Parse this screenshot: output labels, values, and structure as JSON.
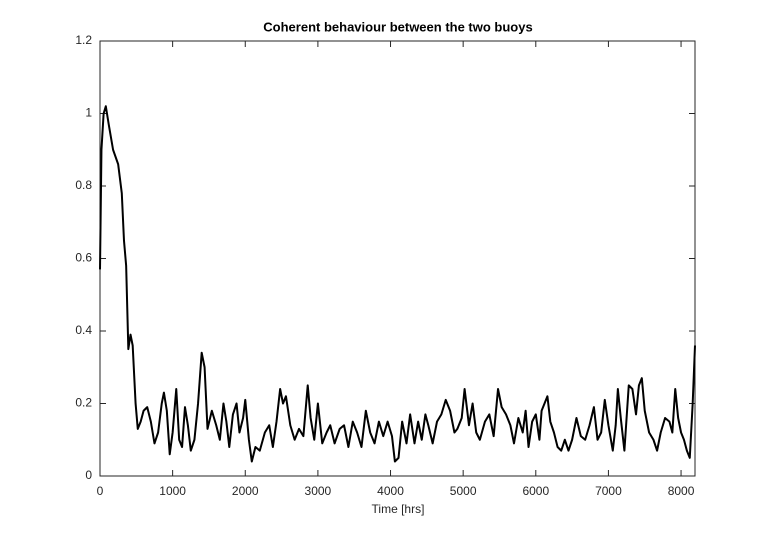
{
  "chart_data": {
    "type": "line",
    "title": "Coherent behaviour between the two buoys",
    "x_label": "Time [hrs]",
    "color": "#000000",
    "x": [
      0,
      20,
      50,
      80,
      120,
      180,
      250,
      300,
      330,
      360,
      390,
      420,
      450,
      490,
      520,
      560,
      600,
      650,
      700,
      750,
      800,
      850,
      880,
      920,
      960,
      1000,
      1050,
      1090,
      1130,
      1170,
      1210,
      1250,
      1300,
      1350,
      1400,
      1440,
      1480,
      1540,
      1600,
      1650,
      1700,
      1740,
      1780,
      1830,
      1880,
      1920,
      1970,
      2000,
      2050,
      2090,
      2140,
      2200,
      2270,
      2330,
      2380,
      2430,
      2480,
      2520,
      2560,
      2620,
      2680,
      2740,
      2800,
      2860,
      2900,
      2950,
      3000,
      3060,
      3120,
      3170,
      3230,
      3300,
      3360,
      3420,
      3480,
      3540,
      3600,
      3660,
      3720,
      3780,
      3840,
      3900,
      3960,
      4020,
      4060,
      4110,
      4160,
      4220,
      4270,
      4330,
      4380,
      4430,
      4480,
      4520,
      4580,
      4640,
      4700,
      4760,
      4820,
      4880,
      4920,
      4980,
      5020,
      5080,
      5130,
      5180,
      5230,
      5300,
      5360,
      5420,
      5480,
      5530,
      5590,
      5650,
      5700,
      5760,
      5820,
      5860,
      5900,
      5950,
      6000,
      6050,
      6080,
      6120,
      6160,
      6200,
      6250,
      6300,
      6350,
      6400,
      6450,
      6500,
      6560,
      6620,
      6680,
      6740,
      6800,
      6850,
      6900,
      6950,
      7000,
      7060,
      7100,
      7130,
      7170,
      7220,
      7280,
      7330,
      7380,
      7420,
      7460,
      7500,
      7560,
      7620,
      7670,
      7720,
      7780,
      7840,
      7880,
      7920,
      7960,
      8000,
      8040,
      8080,
      8120,
      8160,
      8192
    ],
    "values": [
      0.57,
      0.9,
      1.0,
      1.02,
      0.97,
      0.9,
      0.86,
      0.78,
      0.65,
      0.58,
      0.35,
      0.39,
      0.36,
      0.2,
      0.13,
      0.15,
      0.18,
      0.19,
      0.15,
      0.09,
      0.12,
      0.2,
      0.23,
      0.18,
      0.06,
      0.12,
      0.24,
      0.1,
      0.08,
      0.19,
      0.14,
      0.07,
      0.1,
      0.2,
      0.34,
      0.3,
      0.13,
      0.18,
      0.14,
      0.1,
      0.2,
      0.15,
      0.08,
      0.17,
      0.2,
      0.12,
      0.16,
      0.21,
      0.1,
      0.04,
      0.08,
      0.07,
      0.12,
      0.14,
      0.08,
      0.15,
      0.24,
      0.2,
      0.22,
      0.14,
      0.1,
      0.13,
      0.11,
      0.25,
      0.16,
      0.1,
      0.2,
      0.09,
      0.12,
      0.14,
      0.09,
      0.13,
      0.14,
      0.08,
      0.15,
      0.12,
      0.08,
      0.18,
      0.12,
      0.09,
      0.15,
      0.11,
      0.15,
      0.11,
      0.04,
      0.05,
      0.15,
      0.09,
      0.17,
      0.09,
      0.15,
      0.1,
      0.17,
      0.14,
      0.09,
      0.15,
      0.17,
      0.21,
      0.18,
      0.12,
      0.13,
      0.16,
      0.24,
      0.14,
      0.2,
      0.12,
      0.1,
      0.15,
      0.17,
      0.11,
      0.24,
      0.19,
      0.17,
      0.14,
      0.09,
      0.16,
      0.12,
      0.18,
      0.08,
      0.15,
      0.17,
      0.1,
      0.18,
      0.2,
      0.22,
      0.15,
      0.12,
      0.08,
      0.07,
      0.1,
      0.07,
      0.1,
      0.16,
      0.11,
      0.1,
      0.14,
      0.19,
      0.1,
      0.12,
      0.21,
      0.14,
      0.07,
      0.14,
      0.24,
      0.16,
      0.07,
      0.25,
      0.24,
      0.17,
      0.25,
      0.27,
      0.18,
      0.12,
      0.1,
      0.07,
      0.12,
      0.16,
      0.15,
      0.12,
      0.24,
      0.16,
      0.12,
      0.1,
      0.07,
      0.05,
      0.2,
      0.36
    ],
    "xlim": [
      0,
      8192
    ],
    "ylim": [
      0,
      1.2
    ],
    "xticks": [
      0,
      1000,
      2000,
      3000,
      4000,
      5000,
      6000,
      7000,
      8000
    ],
    "yticks": [
      0,
      0.2,
      0.4,
      0.6,
      0.8,
      1,
      1.2
    ]
  }
}
